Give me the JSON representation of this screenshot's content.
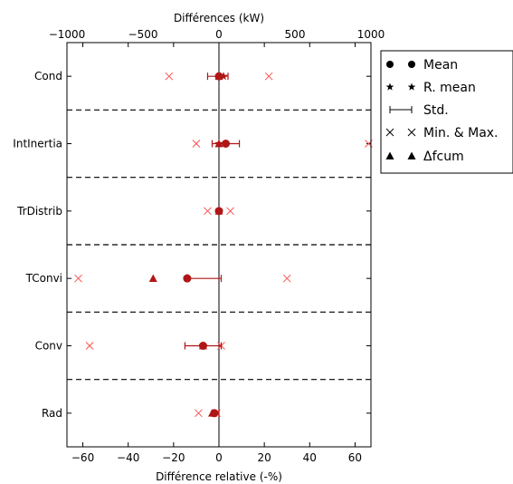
{
  "chart_data": {
    "type": "scatter",
    "categories": [
      "Cond",
      "IntInertia",
      "TrDistrib",
      "TConvi",
      "Conv",
      "Rad"
    ],
    "xlabel": "Différence relative (-%)",
    "x2label": "Différences (kW)",
    "xlim": [
      -67,
      67
    ],
    "x2lim": [
      -1000,
      1000
    ],
    "xticks": [
      "−60",
      "−40",
      "−20",
      "0",
      "20",
      "40",
      "60"
    ],
    "xtick_values": [
      -60,
      -40,
      -20,
      0,
      20,
      40,
      60
    ],
    "x2ticks": [
      "−1000",
      "−500",
      "0",
      "500",
      "1000"
    ],
    "x2tick_values": [
      -1000,
      -500,
      0,
      500,
      1000
    ],
    "grid": false,
    "separators": "dashed",
    "legend_position": "outside-right",
    "colors": {
      "marker": "#b01616",
      "minmax": "#ff5050",
      "separator": "#000000"
    },
    "series": [
      {
        "name": "Mean",
        "values": [
          0,
          3,
          0,
          -14,
          -7,
          -2
        ]
      },
      {
        "name": "R. mean",
        "values": [
          2,
          0,
          0,
          -14,
          -7,
          -2
        ]
      },
      {
        "name": "Std.",
        "values": [
          {
            "low": -5,
            "high": 4
          },
          {
            "low": -3,
            "high": 9
          },
          {
            "low": 0,
            "high": 0
          },
          {
            "low": -14,
            "high": 1
          },
          {
            "low": -15,
            "high": 1
          },
          {
            "low": -3,
            "high": 0
          }
        ]
      },
      {
        "name": "Min. & Max.",
        "values": [
          {
            "min": -22,
            "max": 22
          },
          {
            "min": -10,
            "max": 66
          },
          {
            "min": -5,
            "max": 5
          },
          {
            "min": -62,
            "max": 30
          },
          {
            "min": -57,
            "max": 1
          },
          {
            "min": -9,
            "max": -1
          }
        ]
      },
      {
        "name": "Δfcum",
        "values": [
          0,
          0,
          0,
          -29,
          -7,
          -3
        ]
      }
    ]
  }
}
